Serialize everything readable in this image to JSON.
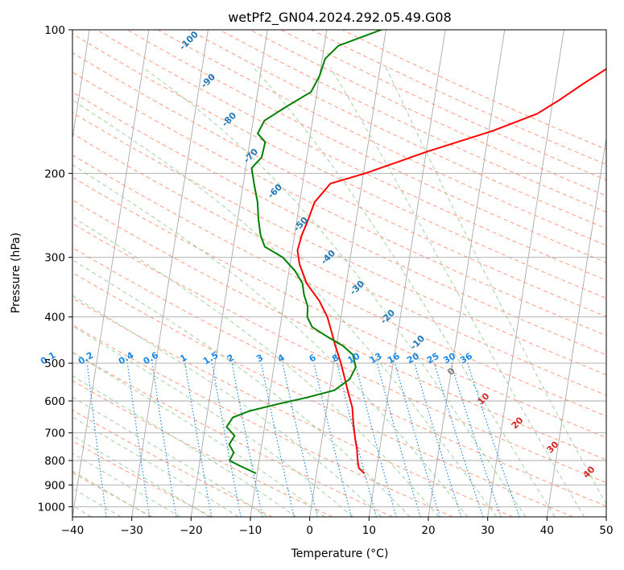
{
  "chart_data": {
    "type": "line",
    "title": "wetPf2_GN04.2024.292.05.49.G08",
    "xlabel": "Temperature (°C)",
    "ylabel": "Pressure (hPa)",
    "xlim": [
      -40,
      50
    ],
    "ylim": [
      1050,
      100
    ],
    "y_scale": "log",
    "grid": true,
    "x_ticks": [
      -40,
      -30,
      -20,
      -10,
      0,
      10,
      20,
      30,
      40,
      50
    ],
    "y_ticks": [
      100,
      200,
      300,
      400,
      500,
      600,
      700,
      800,
      900,
      1000
    ],
    "series": [
      {
        "color": "#ff0000",
        "points": [
          [
            8.0,
            850
          ],
          [
            7.0,
            830
          ],
          [
            6.6,
            800
          ],
          [
            6.2,
            760
          ],
          [
            5.6,
            720
          ],
          [
            4.9,
            670
          ],
          [
            4.3,
            620
          ],
          [
            3.3,
            580
          ],
          [
            2.3,
            540
          ],
          [
            1.2,
            500
          ],
          [
            -0.2,
            460
          ],
          [
            -1.2,
            430
          ],
          [
            -2.3,
            400
          ],
          [
            -4.1,
            370
          ],
          [
            -6.7,
            340
          ],
          [
            -8.4,
            310
          ],
          [
            -9.1,
            290
          ],
          [
            -8.8,
            270
          ],
          [
            -8.1,
            250
          ],
          [
            -7.5,
            230
          ],
          [
            -5.3,
            210
          ],
          [
            0.3,
            200
          ],
          [
            10.2,
            180
          ],
          [
            20.6,
            163
          ],
          [
            27.7,
            150
          ],
          [
            31.2,
            140
          ],
          [
            34.6,
            130
          ],
          [
            38.5,
            120
          ],
          [
            43.9,
            110
          ],
          [
            47.1,
            100
          ]
        ]
      },
      {
        "color": "#008000",
        "points": [
          [
            -10.3,
            850
          ],
          [
            -13.2,
            820
          ],
          [
            -15.0,
            800
          ],
          [
            -14.5,
            770
          ],
          [
            -15.5,
            740
          ],
          [
            -14.8,
            710
          ],
          [
            -16.4,
            680
          ],
          [
            -15.6,
            650
          ],
          [
            -13.0,
            630
          ],
          [
            -8.6,
            610
          ],
          [
            -3.6,
            590
          ],
          [
            0.8,
            570
          ],
          [
            3.1,
            540
          ],
          [
            3.8,
            510
          ],
          [
            3.0,
            480
          ],
          [
            1.1,
            460
          ],
          [
            -1.8,
            440
          ],
          [
            -4.6,
            420
          ],
          [
            -5.7,
            400
          ],
          [
            -5.9,
            380
          ],
          [
            -6.8,
            360
          ],
          [
            -7.4,
            340
          ],
          [
            -9.0,
            320
          ],
          [
            -11.4,
            300
          ],
          [
            -14.7,
            285
          ],
          [
            -15.7,
            270
          ],
          [
            -16.5,
            250
          ],
          [
            -17.1,
            230
          ],
          [
            -18.2,
            210
          ],
          [
            -19.0,
            195
          ],
          [
            -17.6,
            185
          ],
          [
            -17.4,
            172
          ],
          [
            -18.9,
            165
          ],
          [
            -18.1,
            155
          ],
          [
            -14.8,
            145
          ],
          [
            -11.0,
            135
          ],
          [
            -10.0,
            125
          ],
          [
            -9.5,
            115
          ],
          [
            -7.6,
            108
          ],
          [
            -3.4,
            103
          ],
          [
            -0.8,
            100
          ]
        ]
      }
    ],
    "dry_adiabat_labels": [
      "-100",
      "-90",
      "-80",
      "-70",
      "-60",
      "-50",
      "-40",
      "-30",
      "-20",
      "-10"
    ],
    "mixing_ratio_labels": [
      "0.1",
      "0.2",
      "0.4",
      "0.6",
      "1",
      "1.5",
      "2",
      "3",
      "4",
      "6",
      "8",
      "10",
      "13",
      "16",
      "20",
      "25",
      "30",
      "36"
    ],
    "moist_adiabat_labels": [
      "0",
      "10",
      "20",
      "30",
      "40"
    ],
    "colors": {
      "temperature": "#ff0000",
      "dewpoint": "#008000",
      "isotherm": "#a9a9a9",
      "isobar": "#a9a9a9",
      "dry_adiabat": "#ff9a7a",
      "moist_adiabat": "#9fd39f",
      "mixing_ratio": "#1e88e5",
      "dry_label": "#1f77b4",
      "moist_label_hot": "#d62728",
      "moist_label_zero": "#808080"
    }
  }
}
